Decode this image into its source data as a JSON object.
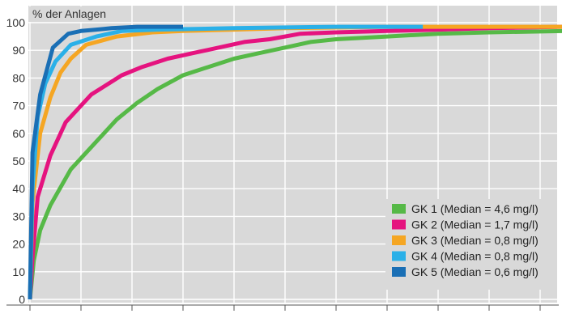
{
  "chart_data": {
    "type": "line",
    "title": "% der Anlagen",
    "ylim": [
      0,
      100
    ],
    "yticks": [
      0,
      10,
      20,
      30,
      40,
      50,
      60,
      70,
      80,
      90,
      100
    ],
    "ytick_labels": [
      "0",
      "10",
      "20",
      "30",
      "40",
      "50",
      "60",
      "70",
      "80",
      "90",
      "100"
    ],
    "xlim": [
      0,
      21
    ],
    "x_gridlines": [
      0,
      2,
      4,
      6,
      8,
      10,
      12,
      14,
      16,
      18,
      20
    ],
    "grid": true,
    "legend_position": "bottom-right",
    "series": [
      {
        "name": "GK 1 (Median = 4,6 mg/l)",
        "color": "#56b947",
        "x": [
          0,
          0.15,
          0.4,
          0.8,
          1.6,
          2.6,
          3.4,
          4.2,
          5.0,
          6.0,
          7.0,
          8.0,
          9.0,
          10.0,
          11.0,
          12.0,
          14.0,
          16.0,
          18.0,
          21.0
        ],
        "y": [
          0,
          14,
          25,
          34,
          47,
          57,
          65,
          71,
          76,
          81,
          84,
          87,
          89,
          91,
          93,
          94,
          95,
          96,
          96.5,
          97
        ]
      },
      {
        "name": "GK 2 (Median = 1,7 mg/l)",
        "color": "#e5137f",
        "x": [
          0,
          0.1,
          0.3,
          0.8,
          1.4,
          2.4,
          3.6,
          4.4,
          5.4,
          6.4,
          7.4,
          8.4,
          9.4,
          10.6,
          12.0,
          14.0,
          16.0,
          18.0,
          21.0
        ],
        "y": [
          0,
          15,
          37,
          52,
          64,
          74,
          81,
          84,
          87,
          89,
          91,
          93,
          94,
          96,
          96.5,
          97,
          97.5,
          98,
          98.5
        ]
      },
      {
        "name": "GK 3 (Median = 0,8 mg/l)",
        "color": "#f5a623",
        "x": [
          0,
          0.1,
          0.4,
          0.8,
          1.2,
          1.6,
          2.2,
          3.4,
          4.8,
          6.0,
          8.0,
          10.0,
          14.0,
          21.0
        ],
        "y": [
          0,
          35,
          60,
          73,
          82,
          87,
          92,
          95,
          96.5,
          97,
          97.5,
          98,
          98.5,
          98.5
        ]
      },
      {
        "name": "GK 4 (Median = 0,8 mg/l)",
        "color": "#2ab0e8",
        "x": [
          0,
          0.1,
          0.3,
          0.6,
          1.0,
          1.6,
          2.6,
          3.6,
          5.0,
          8.0,
          12.0,
          15.4
        ],
        "y": [
          0,
          40,
          66,
          78,
          86,
          92,
          95,
          97,
          97.5,
          98,
          98.5,
          98.5
        ]
      },
      {
        "name": "GK 5 (Median = 0,6 mg/l)",
        "color": "#1a6fb5",
        "x": [
          0,
          0.1,
          0.4,
          0.9,
          1.5,
          2.0,
          2.6,
          3.2,
          4.2,
          6.0
        ],
        "y": [
          0,
          53,
          74,
          91,
          96,
          97,
          97.5,
          98,
          98.5,
          98.5
        ]
      }
    ]
  }
}
